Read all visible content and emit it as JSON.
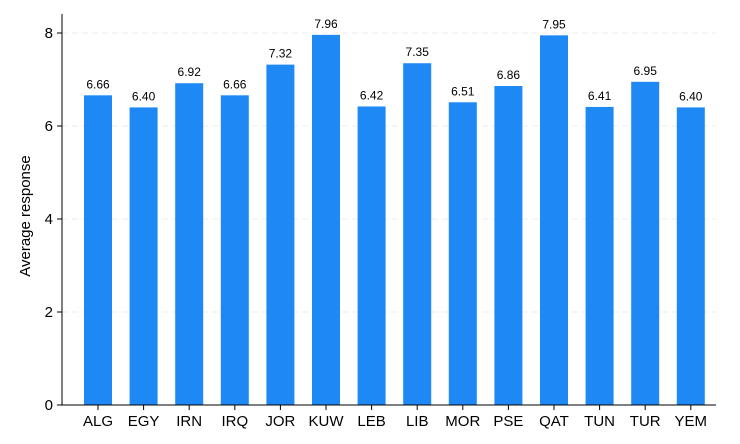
{
  "chart_data": {
    "type": "bar",
    "categories": [
      "ALG",
      "EGY",
      "IRN",
      "IRQ",
      "JOR",
      "KUW",
      "LEB",
      "LIB",
      "MOR",
      "PSE",
      "QAT",
      "TUN",
      "TUR",
      "YEM"
    ],
    "values": [
      6.66,
      6.4,
      6.92,
      6.66,
      7.32,
      7.96,
      6.42,
      7.35,
      6.51,
      6.86,
      7.95,
      6.41,
      6.95,
      6.4
    ],
    "value_labels": [
      "6.66",
      "6.40",
      "6.92",
      "6.66",
      "7.32",
      "7.96",
      "6.42",
      "7.35",
      "6.51",
      "6.86",
      "7.95",
      "6.41",
      "6.95",
      "6.40"
    ],
    "title": "",
    "xlabel": "",
    "ylabel": "Average response",
    "ylim": [
      0,
      8
    ],
    "yticks": [
      0,
      2,
      4,
      6,
      8
    ],
    "grid": "horizontal dashed",
    "bar_color": "#1e88f5"
  }
}
